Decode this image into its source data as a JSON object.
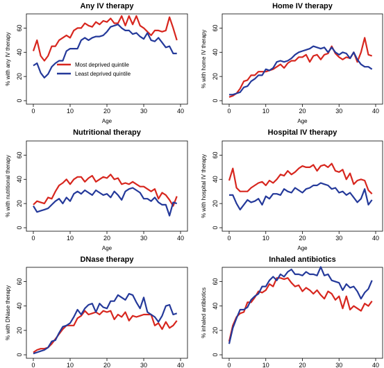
{
  "colors": {
    "most_deprived": "#d7261e",
    "least_deprived": "#24399a"
  },
  "chart_data": [
    {
      "type": "line",
      "title": "Any IV therapy",
      "xlabel": "Age",
      "ylabel": "% with any IV therapy",
      "xlim": [
        0,
        40
      ],
      "ylim": [
        0,
        70
      ],
      "xticks": [
        0,
        10,
        20,
        30,
        40
      ],
      "yticks": [
        0,
        20,
        40,
        60
      ],
      "grid": false,
      "legend": {
        "placement": "middle-left",
        "entries": [
          "Most deprived quintile",
          "Least deprived quintile"
        ]
      },
      "x": [
        0,
        1,
        2,
        3,
        4,
        5,
        6,
        7,
        8,
        9,
        10,
        11,
        12,
        13,
        14,
        15,
        16,
        17,
        18,
        19,
        20,
        21,
        22,
        23,
        24,
        25,
        26,
        27,
        28,
        29,
        30,
        31,
        32,
        33,
        34,
        35,
        36,
        37,
        38,
        39
      ],
      "series": [
        {
          "name": "Most deprived quintile",
          "color": "most_deprived",
          "values": [
            41,
            50,
            37,
            33,
            37,
            45,
            45,
            50,
            52,
            54,
            52,
            58,
            60,
            60,
            64,
            62,
            61,
            65,
            63,
            66,
            65,
            68,
            64,
            64,
            70,
            62,
            70,
            63,
            70,
            62,
            60,
            57,
            54,
            58,
            58,
            57,
            58,
            69,
            60,
            50
          ]
        },
        {
          "name": "Least deprived quintile",
          "color": "least_deprived",
          "values": [
            29,
            31,
            23,
            19,
            22,
            28,
            31,
            33,
            33,
            41,
            43,
            43,
            43,
            50,
            52,
            50,
            52,
            53,
            53,
            54,
            57,
            61,
            62,
            63,
            60,
            58,
            58,
            55,
            56,
            53,
            51,
            56,
            50,
            49,
            52,
            48,
            44,
            45,
            39,
            39
          ]
        }
      ]
    },
    {
      "type": "line",
      "title": "Home IV therapy",
      "xlabel": "Age",
      "ylabel": "% with home IV therapy",
      "xlim": [
        0,
        40
      ],
      "ylim": [
        0,
        70
      ],
      "xticks": [
        0,
        10,
        20,
        30,
        40
      ],
      "yticks": [
        0,
        20,
        40,
        60
      ],
      "grid": false,
      "x": [
        0,
        1,
        2,
        3,
        4,
        5,
        6,
        7,
        8,
        9,
        10,
        11,
        12,
        13,
        14,
        15,
        16,
        17,
        18,
        19,
        20,
        21,
        22,
        23,
        24,
        25,
        26,
        27,
        28,
        29,
        30,
        31,
        32,
        33,
        34,
        35,
        36,
        37,
        38,
        39
      ],
      "series": [
        {
          "name": "Most deprived quintile",
          "color": "most_deprived",
          "values": [
            3,
            4,
            6,
            10,
            16,
            17,
            21,
            21,
            24,
            24,
            24,
            25,
            26,
            28,
            30,
            27,
            31,
            33,
            33,
            36,
            36,
            38,
            32,
            37,
            38,
            34,
            38,
            39,
            45,
            39,
            36,
            34,
            36,
            35,
            40,
            32,
            40,
            52,
            38,
            37
          ]
        },
        {
          "name": "Least deprived quintile",
          "color": "least_deprived",
          "values": [
            5,
            5,
            6,
            7,
            11,
            12,
            16,
            18,
            21,
            21,
            26,
            25,
            27,
            32,
            33,
            32,
            33,
            35,
            38,
            40,
            41,
            42,
            43,
            45,
            44,
            43,
            44,
            40,
            44,
            40,
            38,
            40,
            39,
            35,
            40,
            34,
            30,
            28,
            28,
            26
          ]
        }
      ]
    },
    {
      "type": "line",
      "title": "Nutritional therapy",
      "xlabel": "Age",
      "ylabel": "% with nutritional therapy",
      "xlim": [
        0,
        40
      ],
      "ylim": [
        0,
        70
      ],
      "xticks": [
        0,
        10,
        20,
        30,
        40
      ],
      "yticks": [
        0,
        20,
        40,
        60
      ],
      "grid": false,
      "x": [
        0,
        1,
        2,
        3,
        4,
        5,
        6,
        7,
        8,
        9,
        10,
        11,
        12,
        13,
        14,
        15,
        16,
        17,
        18,
        19,
        20,
        21,
        22,
        23,
        24,
        25,
        26,
        27,
        28,
        29,
        30,
        31,
        32,
        33,
        34,
        35,
        36,
        37,
        38,
        39
      ],
      "series": [
        {
          "name": "Most deprived quintile",
          "color": "most_deprived",
          "values": [
            19,
            22,
            21,
            20,
            25,
            24,
            30,
            35,
            37,
            40,
            36,
            40,
            42,
            42,
            38,
            41,
            43,
            38,
            40,
            42,
            41,
            44,
            40,
            41,
            36,
            37,
            36,
            38,
            36,
            34,
            34,
            32,
            30,
            32,
            24,
            29,
            27,
            23,
            18,
            26
          ]
        },
        {
          "name": "Least deprived quintile",
          "color": "least_deprived",
          "values": [
            18,
            13,
            14,
            15,
            16,
            19,
            22,
            24,
            20,
            25,
            22,
            28,
            30,
            28,
            31,
            29,
            27,
            31,
            29,
            27,
            28,
            25,
            30,
            27,
            23,
            30,
            32,
            33,
            31,
            29,
            24,
            24,
            22,
            25,
            21,
            19,
            19,
            10,
            21,
            20
          ]
        }
      ]
    },
    {
      "type": "line",
      "title": "Hospital IV therapy",
      "xlabel": "Age",
      "ylabel": "% with hospital IV therapy",
      "xlim": [
        0,
        40
      ],
      "ylim": [
        0,
        70
      ],
      "xticks": [
        0,
        10,
        20,
        30,
        40
      ],
      "yticks": [
        0,
        20,
        40,
        60
      ],
      "grid": false,
      "x": [
        0,
        1,
        2,
        3,
        4,
        5,
        6,
        7,
        8,
        9,
        10,
        11,
        12,
        13,
        14,
        15,
        16,
        17,
        18,
        19,
        20,
        21,
        22,
        23,
        24,
        25,
        26,
        27,
        28,
        29,
        30,
        31,
        32,
        33,
        34,
        35,
        36,
        37,
        38,
        39
      ],
      "series": [
        {
          "name": "Most deprived quintile",
          "color": "most_deprived",
          "values": [
            39,
            49,
            33,
            30,
            30,
            30,
            33,
            35,
            37,
            38,
            35,
            39,
            37,
            40,
            44,
            43,
            47,
            44,
            46,
            49,
            51,
            50,
            50,
            52,
            47,
            51,
            52,
            50,
            53,
            47,
            46,
            48,
            40,
            45,
            36,
            39,
            40,
            39,
            31,
            28
          ]
        },
        {
          "name": "Least deprived quintile",
          "color": "least_deprived",
          "values": [
            27,
            27,
            20,
            15,
            19,
            23,
            21,
            22,
            24,
            19,
            26,
            24,
            28,
            28,
            27,
            32,
            30,
            29,
            33,
            31,
            29,
            32,
            33,
            35,
            35,
            37,
            36,
            35,
            32,
            33,
            29,
            30,
            27,
            29,
            25,
            21,
            24,
            32,
            19,
            23
          ]
        }
      ]
    },
    {
      "type": "line",
      "title": "DNase therapy",
      "xlabel": "Age",
      "ylabel": "% with DNase therapy",
      "xlim": [
        0,
        40
      ],
      "ylim": [
        0,
        70
      ],
      "xticks": [
        0,
        10,
        20,
        30,
        40
      ],
      "yticks": [
        0,
        20,
        40,
        60
      ],
      "grid": false,
      "x": [
        0,
        1,
        2,
        3,
        4,
        5,
        6,
        7,
        8,
        9,
        10,
        11,
        12,
        13,
        14,
        15,
        16,
        17,
        18,
        19,
        20,
        21,
        22,
        23,
        24,
        25,
        26,
        27,
        28,
        29,
        30,
        31,
        32,
        33,
        34,
        35,
        36,
        37,
        38,
        39
      ],
      "series": [
        {
          "name": "Most deprived quintile",
          "color": "most_deprived",
          "values": [
            2,
            4,
            5,
            5,
            6,
            9,
            13,
            17,
            21,
            24,
            24,
            24,
            30,
            32,
            36,
            33,
            34,
            35,
            33,
            36,
            35,
            36,
            29,
            33,
            31,
            35,
            28,
            32,
            31,
            32,
            33,
            33,
            33,
            24,
            26,
            21,
            27,
            22,
            24,
            28
          ]
        },
        {
          "name": "Least deprived quintile",
          "color": "least_deprived",
          "values": [
            1,
            2,
            3,
            4,
            6,
            11,
            12,
            18,
            23,
            24,
            26,
            31,
            37,
            33,
            38,
            41,
            42,
            35,
            42,
            39,
            38,
            44,
            44,
            49,
            47,
            45,
            50,
            49,
            43,
            38,
            47,
            35,
            33,
            31,
            27,
            32,
            40,
            41,
            33,
            34
          ]
        }
      ]
    },
    {
      "type": "line",
      "title": "Inhaled antibiotics",
      "xlabel": "Age",
      "ylabel": "% inhaled antibiotics",
      "xlim": [
        0,
        40
      ],
      "ylim": [
        0,
        70
      ],
      "xticks": [
        0,
        10,
        20,
        30,
        40
      ],
      "yticks": [
        0,
        20,
        40,
        60
      ],
      "grid": false,
      "x": [
        0,
        1,
        2,
        3,
        4,
        5,
        6,
        7,
        8,
        9,
        10,
        11,
        12,
        13,
        14,
        15,
        16,
        17,
        18,
        19,
        20,
        21,
        22,
        23,
        24,
        25,
        26,
        27,
        28,
        29,
        30,
        31,
        32,
        33,
        34,
        35,
        36,
        37,
        38,
        39
      ],
      "series": [
        {
          "name": "Most deprived quintile",
          "color": "most_deprived",
          "values": [
            11,
            24,
            31,
            34,
            35,
            43,
            43,
            47,
            52,
            51,
            53,
            58,
            56,
            63,
            63,
            62,
            63,
            59,
            56,
            57,
            52,
            55,
            53,
            50,
            53,
            49,
            46,
            52,
            50,
            45,
            48,
            38,
            48,
            37,
            40,
            38,
            36,
            42,
            40,
            44
          ]
        },
        {
          "name": "Least deprived quintile",
          "color": "least_deprived",
          "values": [
            9,
            22,
            30,
            37,
            37,
            39,
            45,
            48,
            50,
            56,
            56,
            61,
            64,
            61,
            66,
            64,
            68,
            70,
            66,
            66,
            65,
            68,
            66,
            66,
            65,
            72,
            65,
            66,
            61,
            60,
            59,
            53,
            58,
            55,
            56,
            52,
            46,
            51,
            54,
            61
          ]
        }
      ]
    }
  ]
}
